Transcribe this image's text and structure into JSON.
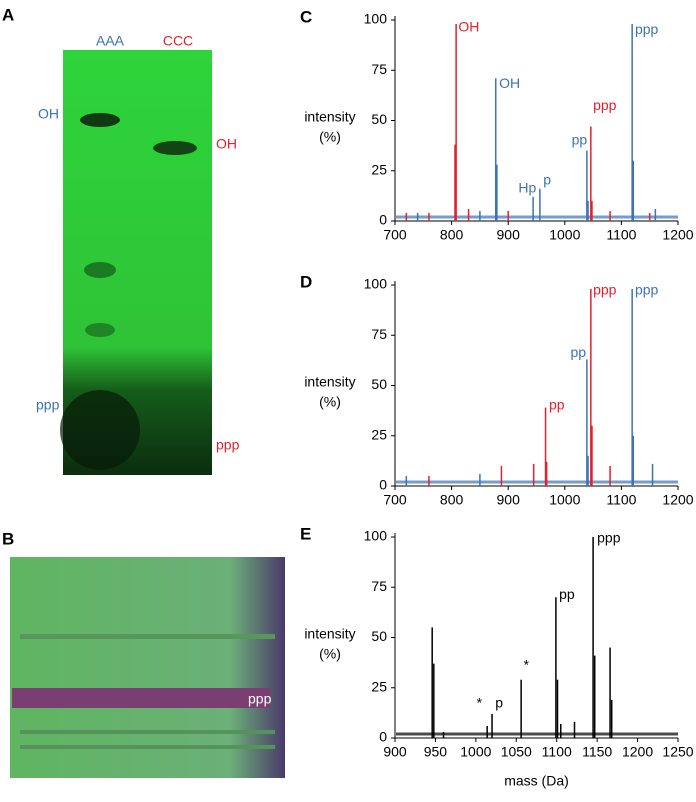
{
  "gel_a": {
    "panel": "A",
    "lanes": [
      "AAA",
      "CCC"
    ],
    "labels_left": [
      "OH",
      "ppp"
    ],
    "labels_right": [
      "OH",
      "ppp"
    ]
  },
  "gel_b": {
    "panel": "B",
    "label": "ppp"
  },
  "chart_data": [
    {
      "panel": "C",
      "type": "spectrum",
      "y_label": [
        "intensity",
        "(%)"
      ],
      "xlim": [
        700,
        1200
      ],
      "xticks": [
        700,
        800,
        900,
        1000,
        1100,
        1200
      ],
      "ylim": [
        0,
        100
      ],
      "yticks": [
        0,
        25,
        50,
        75,
        100
      ],
      "series": [
        {
          "color": "#e3202b",
          "x": [
            720,
            760,
            806,
            808,
            830,
            900,
            1046,
            1048,
            1080,
            1150
          ],
          "values": [
            4,
            4,
            38,
            98,
            6,
            5,
            47,
            10,
            5,
            4
          ]
        },
        {
          "color": "#3b73b6",
          "x": [
            740,
            850,
            878,
            880,
            944,
            956,
            1039,
            1041,
            1119,
            1121,
            1160
          ],
          "values": [
            4,
            5,
            71,
            28,
            12,
            16,
            35,
            10,
            98,
            30,
            6
          ]
        }
      ],
      "annotations": [
        {
          "text": "OH",
          "x": 812,
          "y": 96,
          "color": "#e3202b"
        },
        {
          "text": "OH",
          "x": 884,
          "y": 68,
          "color": "#3b73b6"
        },
        {
          "text": "Hp",
          "x": 918,
          "y": 16,
          "color": "#3b73b6"
        },
        {
          "text": "p",
          "x": 962,
          "y": 20,
          "color": "#3b73b6"
        },
        {
          "text": "pp",
          "x": 1012,
          "y": 40,
          "color": "#3b73b6"
        },
        {
          "text": "ppp",
          "x": 1050,
          "y": 57,
          "color": "#e3202b"
        },
        {
          "text": "ppp",
          "x": 1124,
          "y": 95,
          "color": "#3b73b6"
        }
      ]
    },
    {
      "panel": "D",
      "type": "spectrum",
      "y_label": [
        "intensity",
        "(%)"
      ],
      "xlim": [
        700,
        1200
      ],
      "xticks": [
        700,
        800,
        900,
        1000,
        1100,
        1200
      ],
      "ylim": [
        0,
        100
      ],
      "yticks": [
        0,
        25,
        50,
        75,
        100
      ],
      "series": [
        {
          "color": "#e3202b",
          "x": [
            760,
            888,
            945,
            966,
            968,
            1046,
            1048,
            1080
          ],
          "values": [
            5,
            10,
            11,
            39,
            12,
            98,
            30,
            10
          ]
        },
        {
          "color": "#3b73b6",
          "x": [
            720,
            850,
            1039,
            1041,
            1119,
            1121,
            1155
          ],
          "values": [
            5,
            6,
            63,
            15,
            98,
            25,
            11
          ]
        }
      ],
      "annotations": [
        {
          "text": "pp",
          "x": 972,
          "y": 40,
          "color": "#e3202b"
        },
        {
          "text": "pp",
          "x": 1010,
          "y": 66,
          "color": "#3b73b6"
        },
        {
          "text": "ppp",
          "x": 1050,
          "y": 97,
          "color": "#e3202b"
        },
        {
          "text": "ppp",
          "x": 1124,
          "y": 97,
          "color": "#3b73b6"
        }
      ]
    },
    {
      "panel": "E",
      "type": "spectrum",
      "y_label": [
        "intensity",
        "(%)"
      ],
      "x_label": "mass (Da)",
      "xlim": [
        900,
        1250
      ],
      "xticks": [
        900,
        950,
        1000,
        1050,
        1100,
        1150,
        1200,
        1250
      ],
      "ylim": [
        0,
        100
      ],
      "yticks": [
        0,
        25,
        50,
        75,
        100
      ],
      "series": [
        {
          "color": "#000000",
          "x": [
            946,
            948,
            960,
            1014,
            1020,
            1056,
            1099,
            1101,
            1105,
            1122,
            1145,
            1147,
            1166,
            1168
          ],
          "values": [
            55,
            37,
            3,
            6,
            12,
            29,
            70,
            29,
            7,
            8,
            100,
            41,
            45,
            19
          ]
        }
      ],
      "annotations": [
        {
          "text": "*",
          "x": 1001,
          "y": 17,
          "color": "#000000"
        },
        {
          "text": "p",
          "x": 1024,
          "y": 17,
          "color": "#000000"
        },
        {
          "text": "*",
          "x": 1059,
          "y": 36,
          "color": "#000000"
        },
        {
          "text": "pp",
          "x": 1103,
          "y": 71,
          "color": "#000000"
        },
        {
          "text": "ppp",
          "x": 1150,
          "y": 99,
          "color": "#000000"
        }
      ]
    }
  ]
}
